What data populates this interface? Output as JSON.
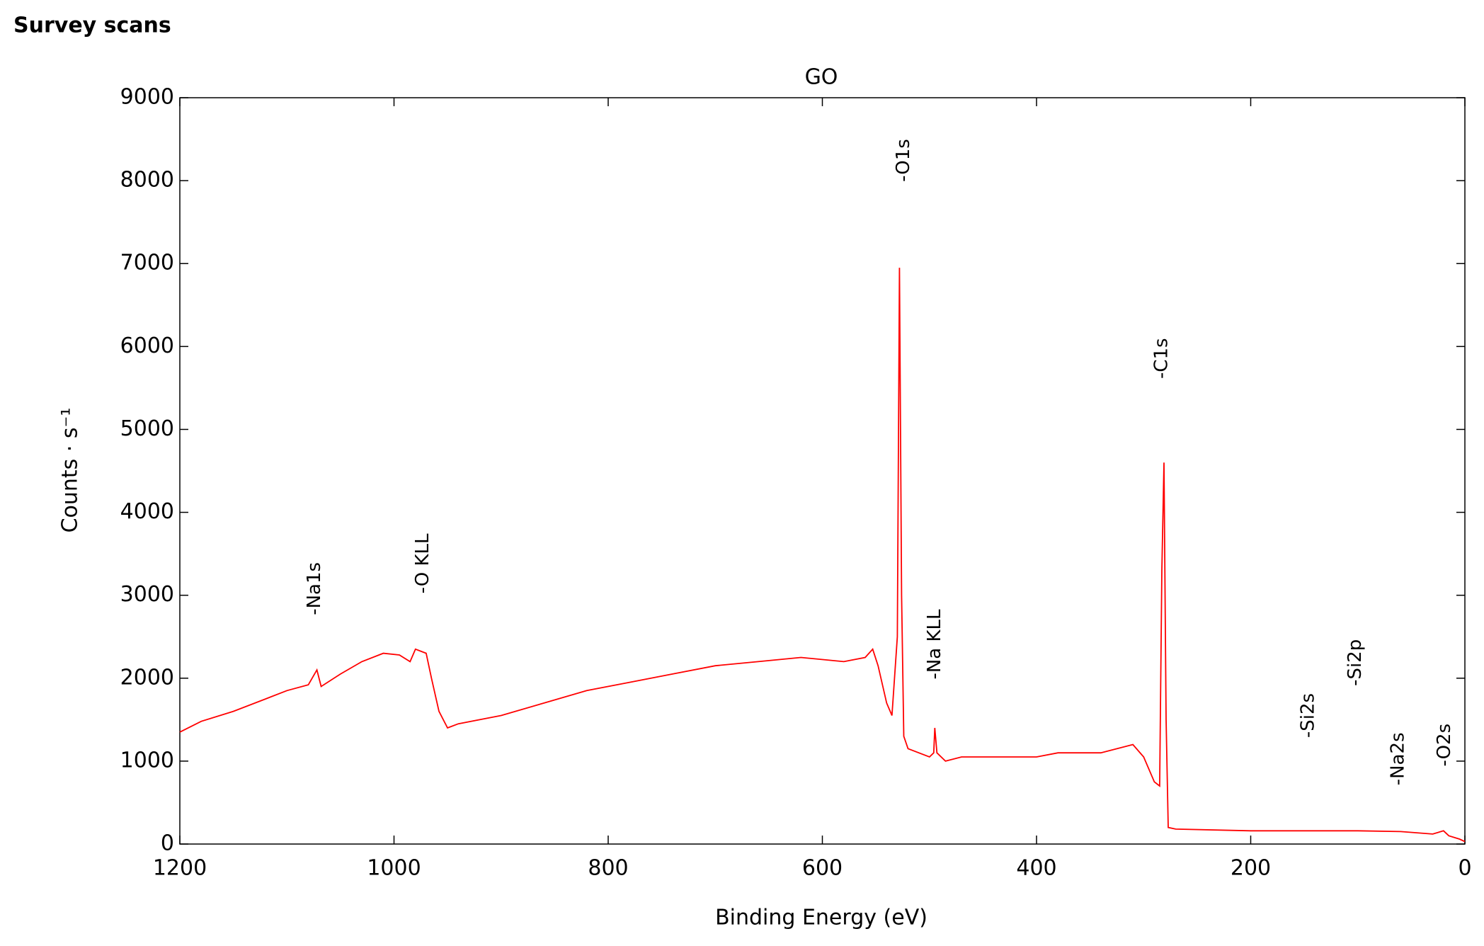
{
  "header": {
    "title": "Survey scans"
  },
  "chart_data": {
    "type": "line",
    "title": "GO",
    "xlabel": "Binding Energy (eV)",
    "ylabel": "Counts · s⁻¹",
    "xlim": [
      1200,
      0
    ],
    "xticks": [
      1200,
      1000,
      800,
      600,
      400,
      200,
      0
    ],
    "ylim": [
      0,
      9000
    ],
    "yticks": [
      0,
      1000,
      2000,
      3000,
      4000,
      5000,
      6000,
      7000,
      8000,
      9000
    ],
    "grid": false,
    "x": [
      1200,
      1180,
      1150,
      1120,
      1100,
      1080,
      1072,
      1068,
      1050,
      1030,
      1010,
      995,
      985,
      980,
      970,
      965,
      958,
      950,
      940,
      900,
      860,
      820,
      780,
      740,
      700,
      660,
      620,
      580,
      560,
      553,
      548,
      540,
      535,
      530,
      528,
      526,
      524,
      520,
      500,
      496,
      495,
      493,
      485,
      470,
      440,
      400,
      380,
      340,
      310,
      300,
      290,
      285,
      283,
      281,
      279,
      277,
      270,
      200,
      150,
      100,
      60,
      30,
      20,
      15,
      5,
      0
    ],
    "series": [
      {
        "color": "#ff0000",
        "values": [
          1350,
          1480,
          1600,
          1750,
          1850,
          1920,
          2100,
          1900,
          2050,
          2200,
          2300,
          2280,
          2200,
          2350,
          2300,
          2000,
          1600,
          1400,
          1450,
          1550,
          1700,
          1850,
          1950,
          2050,
          2150,
          2200,
          2250,
          2200,
          2250,
          2350,
          2150,
          1700,
          1550,
          2500,
          6950,
          3000,
          1300,
          1150,
          1050,
          1100,
          1400,
          1100,
          1000,
          1050,
          1050,
          1050,
          1100,
          1100,
          1200,
          1050,
          750,
          700,
          3300,
          4600,
          1500,
          200,
          180,
          160,
          160,
          160,
          150,
          120,
          160,
          100,
          60,
          30
        ]
      }
    ],
    "annotations": [
      {
        "text": "-Na1s",
        "x": 1074,
        "y": 2760
      },
      {
        "text": "-O KLL",
        "x": 973,
        "y": 3020
      },
      {
        "text": "-O1s",
        "x": 524,
        "y": 7985
      },
      {
        "text": "-Na KLL",
        "x": 495,
        "y": 1985
      },
      {
        "text": "-C1s",
        "x": 283,
        "y": 5610
      },
      {
        "text": "-Si2s",
        "x": 146,
        "y": 1280
      },
      {
        "text": "-Si2p",
        "x": 102,
        "y": 1905
      },
      {
        "text": "-Na2s",
        "x": 62,
        "y": 707
      },
      {
        "text": "-O2s",
        "x": 19,
        "y": 935
      }
    ]
  }
}
